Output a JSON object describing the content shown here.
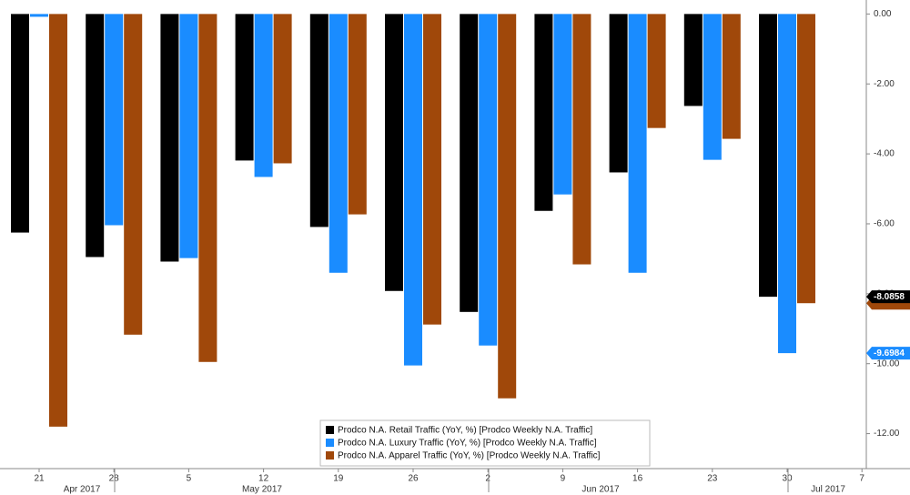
{
  "chart_data": {
    "type": "bar",
    "categories": [
      "21",
      "28",
      "5",
      "12",
      "19",
      "26",
      "2",
      "9",
      "16",
      "23",
      "30",
      "7"
    ],
    "months": [
      "Apr 2017",
      "May 2017",
      "Jun 2017",
      "Jul 2017"
    ],
    "series": [
      {
        "name": "Prodco N.A. Retail Traffic (YoY, %) [Prodco Weekly N.A. Traffic]",
        "color": "#000000",
        "values": [
          -6.25,
          -6.95,
          -7.08,
          -4.19,
          -6.09,
          -7.92,
          -8.52,
          -5.63,
          -4.53,
          -2.63,
          -8.0858,
          null
        ]
      },
      {
        "name": "Prodco N.A. Luxury Traffic (YoY, %) [Prodco Weekly N.A. Traffic]",
        "color": "#1a8cff",
        "values": [
          -0.08,
          -6.04,
          -6.98,
          -4.66,
          -7.4,
          -10.05,
          -9.48,
          -5.16,
          -7.4,
          -4.17,
          -9.6984,
          null
        ]
      },
      {
        "name": "Prodco N.A. Apparel Traffic (YoY, %) [Prodco Weekly N.A. Traffic]",
        "color": "#a0480a",
        "values": [
          -11.8,
          -9.17,
          -9.95,
          -4.27,
          -5.73,
          -8.88,
          -10.99,
          -7.16,
          -3.26,
          -3.57,
          -8.27,
          null
        ]
      }
    ],
    "ylim": [
      -13.0,
      0.4
    ],
    "yticks": [
      {
        "value": 0,
        "label": "0.00"
      },
      {
        "value": -2,
        "label": "-2.00"
      },
      {
        "value": -4,
        "label": "-4.00"
      },
      {
        "value": -6,
        "label": "-6.00"
      },
      {
        "value": -8,
        "label": "-8.00"
      },
      {
        "value": -10,
        "label": "-10.00"
      },
      {
        "value": -12,
        "label": "-12.00"
      }
    ],
    "grid": false,
    "legend": "bottom"
  }
}
